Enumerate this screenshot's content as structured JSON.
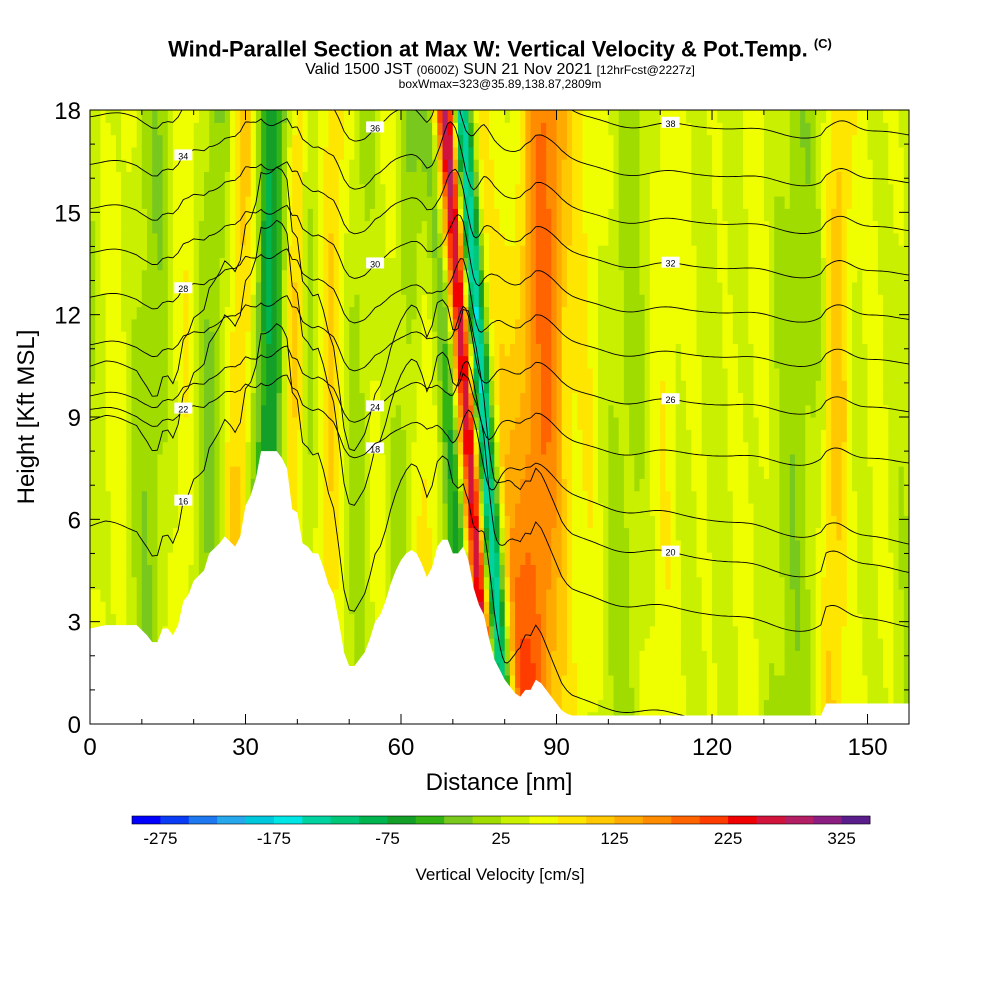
{
  "header": {
    "title_main": "Wind-Parallel Section at Max W: Vertical Velocity & Pot.Temp.",
    "title_mark": "(C)",
    "valid_a": "Valid 1500 JST",
    "valid_b": "(0600Z)",
    "valid_c": "SUN 21 Nov 2021",
    "valid_d": "[12hrFcst@2227z]",
    "box_info": "boxWmax=323@35.89,138.87,2809m"
  },
  "colorbar": {
    "label": "Vertical Velocity [cm/s]",
    "tick_labels": [
      "-275",
      "-175",
      "-75",
      "25",
      "125",
      "225",
      "325"
    ],
    "colors": [
      "#0000ff",
      "#0a3cf5",
      "#1e78f0",
      "#28a8ec",
      "#00c8dc",
      "#00e6e6",
      "#00d2a0",
      "#00c878",
      "#00b450",
      "#14a028",
      "#32b414",
      "#78c81e",
      "#a0dc00",
      "#c8f000",
      "#f0ff00",
      "#ffe600",
      "#ffc800",
      "#ffaa00",
      "#ff8c00",
      "#ff6400",
      "#ff3c00",
      "#f00000",
      "#d2143c",
      "#b41e64",
      "#8c1e82",
      "#5a1e8c"
    ]
  },
  "chart_data": {
    "type": "heatmap",
    "title": "Wind-Parallel Section at Max W: Vertical Velocity & Pot.Temp.",
    "xlabel": "Distance [nm]",
    "ylabel": "Height [Kft MSL]",
    "xlim": [
      0,
      158
    ],
    "ylim": [
      0,
      18
    ],
    "xticks": [
      0,
      30,
      60,
      90,
      120,
      150
    ],
    "yticks": [
      0,
      3,
      6,
      9,
      12,
      15,
      18
    ],
    "grid": false,
    "fill_variable": "Vertical Velocity [cm/s]",
    "contour_variable": "Potential temperature",
    "colorbar_range": [
      -300,
      350
    ],
    "colorbar_step": 25,
    "velocity_bands": [
      {
        "x": 5,
        "w": 2.5,
        "wv": 35
      },
      {
        "x": 12,
        "w": 3,
        "wv": -25
      },
      {
        "x": 18,
        "w": 2.5,
        "wv": 45
      },
      {
        "x": 24,
        "w": 2.5,
        "wv": -50
      },
      {
        "x": 29,
        "w": 3,
        "wv": 90
      },
      {
        "x": 33,
        "w": 2,
        "wv": -90
      },
      {
        "x": 36,
        "w": 2,
        "wv": -80
      },
      {
        "x": 39,
        "w": 2.2,
        "wv": 110
      },
      {
        "x": 42,
        "w": 2,
        "wv": -80
      },
      {
        "x": 46,
        "w": 3,
        "wv": 90
      },
      {
        "x": 51,
        "w": 3,
        "wv": -40
      },
      {
        "x": 56,
        "w": 3,
        "wv": 40
      },
      {
        "x": 61,
        "w": 2.5,
        "wv": -40
      },
      {
        "x": 65,
        "w": 2.5,
        "wv": 70
      },
      {
        "x": 69,
        "w": 1.8,
        "wv": -120
      },
      {
        "x": 72.5,
        "w": 1.6,
        "wv": 330
      },
      {
        "x": 75,
        "w": 1.6,
        "wv": -300
      },
      {
        "x": 78,
        "w": 2,
        "wv": 90
      },
      {
        "x": 84,
        "w": 3,
        "wv": 60
      },
      {
        "x": 88,
        "w": 3,
        "wv": 120
      },
      {
        "x": 96,
        "w": 3,
        "wv": 40
      },
      {
        "x": 105,
        "w": 4,
        "wv": -20
      },
      {
        "x": 110,
        "w": 3,
        "wv": 45
      },
      {
        "x": 118,
        "w": 4,
        "wv": 15
      },
      {
        "x": 128,
        "w": 3,
        "wv": 30
      },
      {
        "x": 136,
        "w": 3,
        "wv": -20
      },
      {
        "x": 144,
        "w": 2,
        "wv": 80
      },
      {
        "x": 152,
        "w": 3,
        "wv": 25
      }
    ],
    "terrain": [
      [
        0,
        2.8
      ],
      [
        3,
        2.9
      ],
      [
        6,
        2.9
      ],
      [
        9,
        2.9
      ],
      [
        11,
        2.6
      ],
      [
        12,
        2.4
      ],
      [
        13,
        2.4
      ],
      [
        14,
        2.8
      ],
      [
        15,
        2.8
      ],
      [
        16,
        2.6
      ],
      [
        17,
        2.9
      ],
      [
        18,
        3.6
      ],
      [
        19,
        3.8
      ],
      [
        20,
        4.2
      ],
      [
        22,
        4.5
      ],
      [
        23,
        5
      ],
      [
        25,
        5.3
      ],
      [
        26,
        5.5
      ],
      [
        28,
        5.2
      ],
      [
        29,
        5.5
      ],
      [
        30,
        6.4
      ],
      [
        31,
        6.7
      ],
      [
        32,
        7.2
      ],
      [
        33,
        8
      ],
      [
        36,
        8
      ],
      [
        37,
        7.8
      ],
      [
        38,
        7.5
      ],
      [
        39,
        6.3
      ],
      [
        40,
        6.2
      ],
      [
        41,
        5.3
      ],
      [
        42,
        5.2
      ],
      [
        43,
        5
      ],
      [
        44,
        5
      ],
      [
        45,
        4.6
      ],
      [
        46,
        4.1
      ],
      [
        47,
        3.8
      ],
      [
        48,
        3
      ],
      [
        49,
        2.1
      ],
      [
        50,
        1.7
      ],
      [
        51,
        1.7
      ],
      [
        52,
        1.9
      ],
      [
        53,
        2.1
      ],
      [
        54,
        2.5
      ],
      [
        55,
        3
      ],
      [
        56,
        3.2
      ],
      [
        57,
        3.6
      ],
      [
        58,
        4.1
      ],
      [
        59,
        4.5
      ],
      [
        60,
        4.8
      ],
      [
        61,
        5
      ],
      [
        62,
        5.1
      ],
      [
        63,
        5
      ],
      [
        64,
        4.7
      ],
      [
        65,
        4.3
      ],
      [
        66,
        4.6
      ],
      [
        67,
        5.2
      ],
      [
        68,
        5.4
      ],
      [
        69,
        5.4
      ],
      [
        70,
        5
      ],
      [
        71,
        5
      ],
      [
        72,
        5.2
      ],
      [
        73,
        4.8
      ],
      [
        74,
        4
      ],
      [
        75,
        3.5
      ],
      [
        76,
        3.2
      ],
      [
        77,
        2.5
      ],
      [
        78,
        1.9
      ],
      [
        79,
        1.6
      ],
      [
        80,
        1.3
      ],
      [
        81,
        1.1
      ],
      [
        82,
        0.9
      ],
      [
        83,
        0.8
      ],
      [
        84,
        1
      ],
      [
        85,
        1
      ],
      [
        86,
        1.3
      ],
      [
        87,
        1.2
      ],
      [
        88,
        1
      ],
      [
        89,
        0.8
      ],
      [
        90,
        0.6
      ],
      [
        91,
        0.4
      ],
      [
        92,
        0.3
      ],
      [
        93,
        0.25
      ],
      [
        141,
        0.25
      ],
      [
        142,
        0.6
      ],
      [
        158,
        0.6
      ]
    ],
    "isentropes": [
      {
        "label": "16",
        "base": 0.5
      },
      {
        "label": "18",
        "base": 3.6
      },
      {
        "label": "20",
        "base": 5.2
      },
      {
        "label": "22",
        "base": 6.6
      },
      {
        "label": "24",
        "base": 8.0
      },
      {
        "label": "26",
        "base": 9.5
      },
      {
        "label": "28",
        "base": 10.9
      },
      {
        "label": "30",
        "base": 12.2
      },
      {
        "label": "32",
        "base": 13.5
      },
      {
        "label": "34",
        "base": 14.8
      },
      {
        "label": "36",
        "base": 16.2
      },
      {
        "label": "38",
        "base": 17.6
      }
    ]
  }
}
